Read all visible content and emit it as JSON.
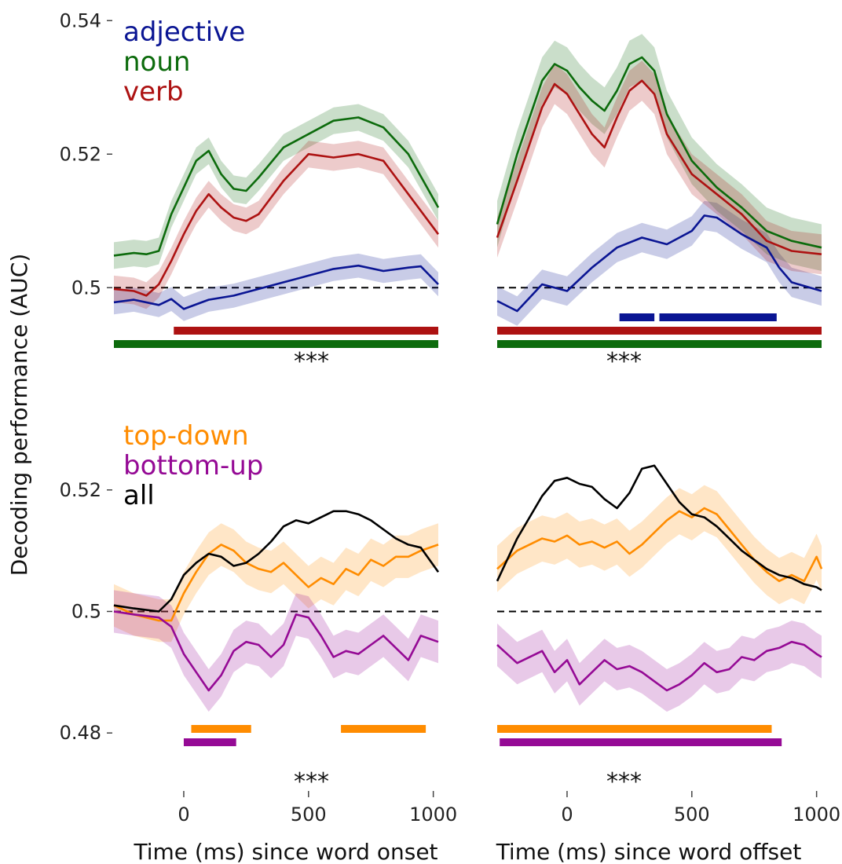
{
  "figure": {
    "ylabel": "Decoding performance (AUC)",
    "xlabel_left": "Time (ms) since word onset",
    "xlabel_right": "Time (ms) since word offset",
    "significance_label": "***"
  },
  "colors": {
    "adjective": "#0a1593",
    "noun": "#0c6b0c",
    "verb": "#ad1212",
    "top-down": "#ff8c00",
    "bottom-up": "#950a95",
    "all": "#000000"
  },
  "chart_data": [
    {
      "type": "line",
      "panel": "top-left",
      "xlabel": "",
      "ylabel": "",
      "xlim": [
        -280,
        1020
      ],
      "ylim": [
        0.4925,
        0.5405
      ],
      "yticks": [
        0.5,
        0.52,
        0.54
      ],
      "ytick_labels": [
        "0.5",
        "0.52",
        "0.54"
      ],
      "chance": 0.5,
      "legend": [
        "adjective",
        "noun",
        "verb"
      ],
      "legend_position": "top-left",
      "series": [
        {
          "name": "adjective",
          "color_key": "adjective",
          "x": [
            -280,
            -200,
            -100,
            -50,
            0,
            50,
            100,
            200,
            300,
            400,
            500,
            600,
            700,
            800,
            900,
            950,
            1020
          ],
          "y": [
            0.4978,
            0.4982,
            0.4974,
            0.4983,
            0.4968,
            0.4975,
            0.4982,
            0.4988,
            0.4998,
            0.5008,
            0.5018,
            0.5028,
            0.5033,
            0.5025,
            0.503,
            0.5032,
            0.5005
          ],
          "band": 0.0018
        },
        {
          "name": "noun",
          "color_key": "noun",
          "x": [
            -280,
            -200,
            -150,
            -100,
            -50,
            0,
            50,
            100,
            150,
            200,
            250,
            300,
            400,
            500,
            600,
            700,
            800,
            900,
            1020
          ],
          "y": [
            0.5048,
            0.5052,
            0.505,
            0.5055,
            0.511,
            0.515,
            0.519,
            0.5205,
            0.517,
            0.5148,
            0.5145,
            0.5165,
            0.521,
            0.523,
            0.525,
            0.5255,
            0.524,
            0.52,
            0.512
          ],
          "band": 0.002
        },
        {
          "name": "verb",
          "color_key": "verb",
          "x": [
            -280,
            -200,
            -150,
            -100,
            -50,
            0,
            50,
            100,
            150,
            200,
            250,
            300,
            400,
            500,
            600,
            700,
            800,
            900,
            1020
          ],
          "y": [
            0.4998,
            0.4995,
            0.4988,
            0.5005,
            0.504,
            0.508,
            0.5115,
            0.514,
            0.512,
            0.5105,
            0.51,
            0.511,
            0.516,
            0.52,
            0.5195,
            0.52,
            0.519,
            0.514,
            0.508
          ],
          "band": 0.002
        }
      ],
      "significance_bars": [
        {
          "color_key": "verb",
          "start": -40,
          "end": 1020
        },
        {
          "color_key": "noun",
          "start": -280,
          "end": 1020
        }
      ]
    },
    {
      "type": "line",
      "panel": "top-right",
      "xlabel": "",
      "ylabel": "",
      "xlim": [
        -280,
        1020
      ],
      "ylim": [
        0.4925,
        0.5405
      ],
      "chance": 0.5,
      "series": [
        {
          "name": "adjective",
          "color_key": "adjective",
          "x": [
            -280,
            -200,
            -100,
            0,
            100,
            200,
            300,
            400,
            500,
            550,
            600,
            700,
            800,
            850,
            900,
            1020
          ],
          "y": [
            0.498,
            0.4965,
            0.5005,
            0.4995,
            0.503,
            0.506,
            0.5075,
            0.5065,
            0.5085,
            0.5108,
            0.5105,
            0.508,
            0.506,
            0.503,
            0.5008,
            0.4995
          ],
          "band": 0.0022
        },
        {
          "name": "noun",
          "color_key": "noun",
          "x": [
            -280,
            -200,
            -100,
            -50,
            0,
            50,
            100,
            150,
            200,
            250,
            300,
            350,
            400,
            500,
            600,
            700,
            800,
            900,
            1020
          ],
          "y": [
            0.5095,
            0.52,
            0.531,
            0.5335,
            0.5325,
            0.53,
            0.528,
            0.5265,
            0.5295,
            0.5335,
            0.5345,
            0.5325,
            0.526,
            0.519,
            0.515,
            0.512,
            0.5085,
            0.507,
            0.506
          ],
          "band": 0.0035
        },
        {
          "name": "verb",
          "color_key": "verb",
          "x": [
            -280,
            -200,
            -100,
            -50,
            0,
            50,
            100,
            150,
            200,
            250,
            300,
            350,
            400,
            500,
            600,
            700,
            800,
            900,
            1020
          ],
          "y": [
            0.5075,
            0.516,
            0.527,
            0.5305,
            0.529,
            0.526,
            0.523,
            0.521,
            0.5255,
            0.5295,
            0.531,
            0.529,
            0.523,
            0.517,
            0.514,
            0.511,
            0.507,
            0.5055,
            0.505
          ],
          "band": 0.003
        }
      ],
      "significance_bars": [
        {
          "color_key": "adjective",
          "start": 210,
          "end": 350
        },
        {
          "color_key": "adjective",
          "start": 370,
          "end": 840
        },
        {
          "color_key": "verb",
          "start": -280,
          "end": 1020
        },
        {
          "color_key": "noun",
          "start": -280,
          "end": 1020
        }
      ]
    },
    {
      "type": "line",
      "panel": "bottom-left",
      "xlabel": "",
      "ylabel": "",
      "xlim": [
        -280,
        1020
      ],
      "ylim": [
        0.4755,
        0.5285
      ],
      "yticks": [
        0.48,
        0.5,
        0.52
      ],
      "ytick_labels": [
        "0.48",
        "0.5",
        "0.52"
      ],
      "xticks": [
        0,
        500,
        1000
      ],
      "chance": 0.5,
      "legend": [
        "top-down",
        "bottom-up",
        "all"
      ],
      "legend_position": "top-left",
      "series": [
        {
          "name": "top-down",
          "color_key": "top-down",
          "x": [
            -280,
            -200,
            -100,
            -50,
            0,
            50,
            100,
            150,
            200,
            250,
            300,
            350,
            400,
            450,
            500,
            550,
            600,
            650,
            700,
            750,
            800,
            850,
            900,
            950,
            1020
          ],
          "y": [
            0.501,
            0.4995,
            0.4985,
            0.4985,
            0.503,
            0.5065,
            0.5095,
            0.511,
            0.51,
            0.508,
            0.507,
            0.5065,
            0.508,
            0.506,
            0.504,
            0.5055,
            0.5045,
            0.507,
            0.506,
            0.5085,
            0.5075,
            0.509,
            0.509,
            0.51,
            0.511
          ],
          "band": 0.0035
        },
        {
          "name": "bottom-up",
          "color_key": "bottom-up",
          "x": [
            -280,
            -200,
            -100,
            -50,
            0,
            50,
            100,
            150,
            200,
            250,
            300,
            350,
            400,
            450,
            500,
            550,
            600,
            650,
            700,
            750,
            800,
            850,
            900,
            950,
            1020
          ],
          "y": [
            0.5,
            0.4995,
            0.499,
            0.4975,
            0.493,
            0.49,
            0.487,
            0.4895,
            0.4935,
            0.495,
            0.4945,
            0.4925,
            0.4945,
            0.4995,
            0.499,
            0.496,
            0.4925,
            0.4935,
            0.493,
            0.4945,
            0.496,
            0.494,
            0.492,
            0.496,
            0.495
          ],
          "band": 0.0035
        },
        {
          "name": "all",
          "color_key": "all",
          "x": [
            -280,
            -200,
            -100,
            -50,
            0,
            50,
            100,
            150,
            200,
            250,
            300,
            350,
            400,
            450,
            500,
            550,
            600,
            650,
            700,
            750,
            800,
            850,
            900,
            950,
            1020
          ],
          "y": [
            0.501,
            0.5005,
            0.5,
            0.502,
            0.506,
            0.508,
            0.5095,
            0.509,
            0.5075,
            0.508,
            0.5095,
            0.5115,
            0.514,
            0.515,
            0.5145,
            0.5155,
            0.5165,
            0.5165,
            0.516,
            0.515,
            0.5135,
            0.512,
            0.511,
            0.5105,
            0.5065
          ],
          "band": 0
        }
      ],
      "significance_bars": [
        {
          "color_key": "top-down",
          "start": 30,
          "end": 270
        },
        {
          "color_key": "top-down",
          "start": 630,
          "end": 970
        },
        {
          "color_key": "bottom-up",
          "start": 0,
          "end": 210
        }
      ]
    },
    {
      "type": "line",
      "panel": "bottom-right",
      "xlabel": "",
      "ylabel": "",
      "xlim": [
        -280,
        1020
      ],
      "ylim": [
        0.4755,
        0.5285
      ],
      "xticks": [
        0,
        500,
        1000
      ],
      "chance": 0.5,
      "series": [
        {
          "name": "top-down",
          "color_key": "top-down",
          "x": [
            -280,
            -200,
            -100,
            -50,
            0,
            50,
            100,
            150,
            200,
            250,
            300,
            350,
            400,
            450,
            500,
            550,
            600,
            650,
            700,
            750,
            800,
            850,
            900,
            950,
            1000,
            1020
          ],
          "y": [
            0.507,
            0.51,
            0.512,
            0.5115,
            0.5125,
            0.511,
            0.5115,
            0.5105,
            0.5115,
            0.5095,
            0.511,
            0.513,
            0.515,
            0.5165,
            0.5155,
            0.517,
            0.516,
            0.5135,
            0.511,
            0.5085,
            0.5065,
            0.505,
            0.506,
            0.505,
            0.509,
            0.507
          ],
          "band": 0.0038
        },
        {
          "name": "bottom-up",
          "color_key": "bottom-up",
          "x": [
            -280,
            -200,
            -100,
            -50,
            0,
            50,
            100,
            150,
            200,
            250,
            300,
            350,
            400,
            450,
            500,
            550,
            600,
            650,
            700,
            750,
            800,
            850,
            900,
            950,
            1000,
            1020
          ],
          "y": [
            0.4945,
            0.4915,
            0.4935,
            0.49,
            0.492,
            0.488,
            0.49,
            0.492,
            0.4905,
            0.491,
            0.49,
            0.4885,
            0.487,
            0.488,
            0.4895,
            0.4915,
            0.49,
            0.4905,
            0.4925,
            0.492,
            0.4935,
            0.494,
            0.495,
            0.4945,
            0.493,
            0.4925
          ],
          "band": 0.0035
        },
        {
          "name": "all",
          "color_key": "all",
          "x": [
            -280,
            -200,
            -100,
            -50,
            0,
            50,
            100,
            150,
            200,
            250,
            300,
            350,
            400,
            450,
            500,
            550,
            600,
            650,
            700,
            750,
            800,
            850,
            900,
            950,
            1000,
            1020
          ],
          "y": [
            0.505,
            0.512,
            0.519,
            0.5215,
            0.522,
            0.521,
            0.5205,
            0.5185,
            0.517,
            0.5195,
            0.5235,
            0.524,
            0.521,
            0.518,
            0.516,
            0.5155,
            0.514,
            0.512,
            0.51,
            0.5085,
            0.507,
            0.506,
            0.5055,
            0.5045,
            0.504,
            0.5035
          ],
          "band": 0
        }
      ],
      "significance_bars": [
        {
          "color_key": "top-down",
          "start": -280,
          "end": 820
        },
        {
          "color_key": "bottom-up",
          "start": -270,
          "end": 860
        }
      ]
    }
  ]
}
